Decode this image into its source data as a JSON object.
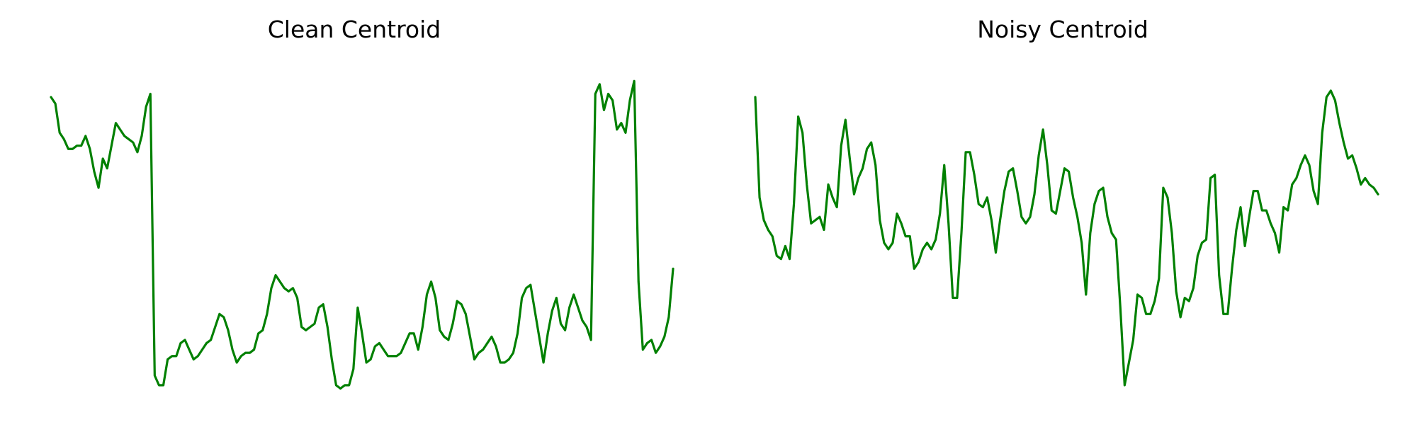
{
  "chart_data": [
    {
      "type": "line",
      "title": "Clean Centroid",
      "xlabel": "",
      "ylabel": "",
      "axes_visible": false,
      "color": "#008000",
      "ylim": [
        0,
        100
      ],
      "series": [
        {
          "values": [
            91,
            89,
            80,
            78,
            75,
            75,
            76,
            76,
            79,
            75,
            68,
            63,
            72,
            69,
            76,
            83,
            81,
            79,
            78,
            77,
            74,
            79,
            88,
            92,
            5,
            2,
            2,
            10,
            11,
            11,
            15,
            16,
            13,
            10,
            11,
            13,
            15,
            16,
            20,
            24,
            23,
            19,
            13,
            9,
            11,
            12,
            12,
            13,
            18,
            19,
            24,
            32,
            36,
            34,
            32,
            31,
            32,
            29,
            20,
            19,
            20,
            21,
            26,
            27,
            20,
            10,
            2,
            1,
            2,
            2,
            7,
            26,
            18,
            9,
            10,
            14,
            15,
            13,
            11,
            11,
            11,
            12,
            15,
            18,
            18,
            13,
            20,
            30,
            34,
            29,
            19,
            17,
            16,
            21,
            28,
            27,
            24,
            17,
            10,
            12,
            13,
            15,
            17,
            14,
            9,
            9,
            10,
            12,
            18,
            29,
            32,
            33,
            25,
            17,
            9,
            18,
            25,
            29,
            21,
            19,
            26,
            30,
            26,
            22,
            20,
            16,
            92,
            95,
            87,
            92,
            90,
            81,
            83,
            80,
            90,
            96,
            34,
            13,
            15,
            16,
            12,
            14,
            17,
            23,
            38
          ]
        }
      ]
    },
    {
      "type": "line",
      "title": "Noisy Centroid",
      "xlabel": "",
      "ylabel": "",
      "axes_visible": false,
      "color": "#008000",
      "ylim": [
        0,
        100
      ],
      "series": [
        {
          "values": [
            91,
            60,
            53,
            50,
            48,
            42,
            41,
            45,
            41,
            58,
            85,
            80,
            64,
            52,
            53,
            54,
            50,
            64,
            60,
            57,
            76,
            84,
            72,
            61,
            66,
            69,
            75,
            77,
            70,
            53,
            46,
            44,
            46,
            55,
            52,
            48,
            48,
            38,
            40,
            44,
            46,
            44,
            47,
            55,
            70,
            52,
            29,
            29,
            49,
            74,
            74,
            67,
            58,
            57,
            60,
            53,
            43,
            53,
            62,
            68,
            69,
            62,
            54,
            52,
            54,
            61,
            73,
            81,
            70,
            56,
            55,
            62,
            69,
            68,
            60,
            54,
            46,
            30,
            49,
            58,
            62,
            63,
            54,
            49,
            47,
            26,
            2,
            9,
            16,
            30,
            29,
            24,
            24,
            28,
            35,
            63,
            60,
            49,
            31,
            23,
            29,
            28,
            32,
            42,
            46,
            47,
            66,
            67,
            36,
            24,
            24,
            38,
            50,
            57,
            45,
            54,
            62,
            62,
            56,
            56,
            52,
            49,
            43,
            57,
            56,
            64,
            66,
            70,
            73,
            70,
            62,
            58,
            80,
            91,
            93,
            90,
            83,
            77,
            72,
            73,
            69,
            64,
            66,
            64,
            63,
            61
          ]
        }
      ]
    }
  ]
}
